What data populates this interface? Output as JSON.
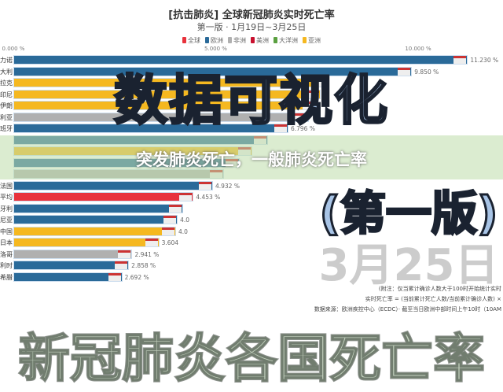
{
  "chart_data": {
    "type": "bar",
    "title": "[抗击肺炎] 全球新冠肺炎实时死亡率",
    "subtitle": "第一版 · 1月19日~3月25日",
    "legend": [
      {
        "name": "全球",
        "color": "#e8323c"
      },
      {
        "name": "欧洲",
        "color": "#2a6a99"
      },
      {
        "name": "非洲",
        "color": "#b0b0b0"
      },
      {
        "name": "美洲",
        "color": "#c8102e"
      },
      {
        "name": "大洋洲",
        "color": "#5aa040"
      },
      {
        "name": "亚洲",
        "color": "#f5b820"
      }
    ],
    "x_ticks": [
      "0.000 %",
      "5.000 %",
      "10.000 %"
    ],
    "xlim": [
      0,
      12
    ],
    "rows": [
      {
        "label": "力诺",
        "region": "欧洲",
        "value": 11.23,
        "value_label": "11.230 %"
      },
      {
        "label": "大利",
        "region": "欧洲",
        "value": 9.85,
        "value_label": "9.850 %"
      },
      {
        "label": "拉克",
        "region": "亚洲",
        "value": 7.7,
        "value_label": ""
      },
      {
        "label": "印尼",
        "region": "亚洲",
        "value": 7.6,
        "value_label": ""
      },
      {
        "label": "伊朗",
        "region": "亚洲",
        "value": 7.5,
        "value_label": ""
      },
      {
        "label": "利亚",
        "region": "非洲",
        "value": 7.3,
        "value_label": ""
      },
      {
        "label": "班牙",
        "region": "欧洲",
        "value": 6.796,
        "value_label": "6.796 %"
      },
      {
        "label": "",
        "region": "欧洲",
        "value": 6.3,
        "value_label": ""
      },
      {
        "label": "",
        "region": "亚洲",
        "value": 5.9,
        "value_label": ""
      },
      {
        "label": "",
        "region": "欧洲",
        "value": 5.6,
        "value_label": ""
      },
      {
        "label": "",
        "region": "非洲",
        "value": 5.2,
        "value_label": ""
      },
      {
        "label": "法国",
        "region": "欧洲",
        "value": 4.932,
        "value_label": "4.932 %"
      },
      {
        "label": "平均",
        "region": "全球",
        "value": 4.453,
        "value_label": "4.453 %"
      },
      {
        "label": "牙利",
        "region": "欧洲",
        "value": 4.2,
        "value_label": ""
      },
      {
        "label": "尼亚",
        "region": "欧洲",
        "value": 4.06,
        "value_label": "4.0"
      },
      {
        "label": "中国",
        "region": "亚洲",
        "value": 4.02,
        "value_label": "4.0"
      },
      {
        "label": "日本",
        "region": "亚洲",
        "value": 3.604,
        "value_label": "3.604"
      },
      {
        "label": "洛哥",
        "region": "非洲",
        "value": 2.941,
        "value_label": "2.941 %"
      },
      {
        "label": "利时",
        "region": "欧洲",
        "value": 2.858,
        "value_label": "2.858 %"
      },
      {
        "label": "希腊",
        "region": "欧洲",
        "value": 2.692,
        "value_label": "2.692 %"
      }
    ]
  },
  "overlay": {
    "headline": "数据可视化",
    "watermark": "新冠肺炎各国死亡率",
    "banner": "突发肺炎死亡，一般肺炎死亡率",
    "edition": "(第一版)",
    "date": "3月25日"
  },
  "notes": [
    "(附注：仅当累计确诊人数大于100时开始统计实时",
    "实时死亡率 = (当前累计死亡人数/当前累计确诊人数) ×",
    "数据来源：欧洲疾控中心（ECDC）· 截至当日欧洲中部时间上午10时（10AM"
  ]
}
